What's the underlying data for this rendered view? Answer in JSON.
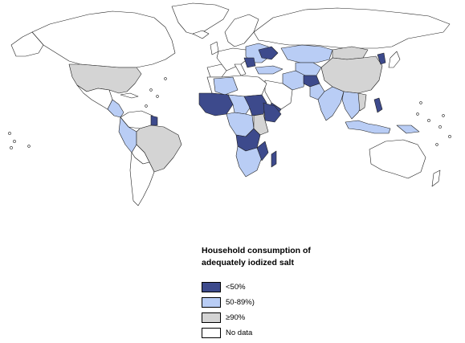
{
  "map": {
    "categories": [
      {
        "key": "lt50",
        "label": "<50%",
        "color": "#3d4a8c"
      },
      {
        "key": "mid",
        "label": "50-89%)",
        "color": "#b9cdf5"
      },
      {
        "key": "gte90",
        "label": "≥90%",
        "color": "#d4d4d4"
      },
      {
        "key": "nodata",
        "label": "No data",
        "color": "#ffffff"
      }
    ]
  },
  "legend": {
    "title_line1": "Household consumption of",
    "title_line2": "adequately iodized salt",
    "items": [
      {
        "label": "<50%",
        "color": "#3d4a8c"
      },
      {
        "label": "50-89%)",
        "color": "#b9cdf5"
      },
      {
        "label": "≥90%",
        "color": "#d4d4d4"
      },
      {
        "label": "No data",
        "color": "#ffffff"
      }
    ]
  }
}
